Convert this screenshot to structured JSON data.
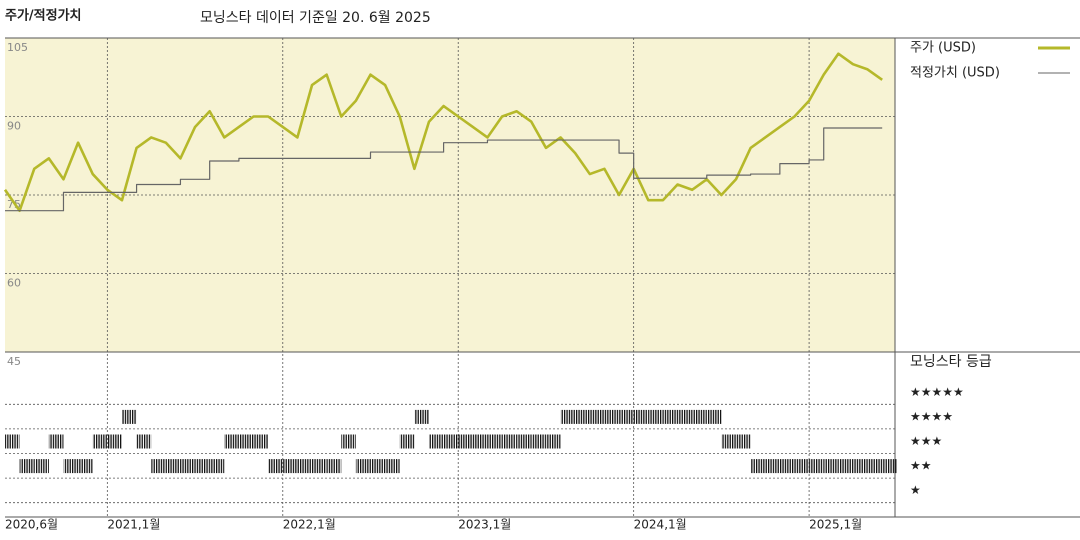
{
  "chart_data": [
    {
      "type": "line",
      "title": "주가/적정가치",
      "subtitle": "모닝스타 데이터 기준일 20. 6월 2025",
      "x": [
        "2020-06",
        "2020-07",
        "2020-08",
        "2020-09",
        "2020-10",
        "2020-11",
        "2020-12",
        "2021-01",
        "2021-02",
        "2021-03",
        "2021-04",
        "2021-05",
        "2021-06",
        "2021-07",
        "2021-08",
        "2021-09",
        "2021-10",
        "2021-11",
        "2021-12",
        "2022-01",
        "2022-02",
        "2022-03",
        "2022-04",
        "2022-05",
        "2022-06",
        "2022-07",
        "2022-08",
        "2022-09",
        "2022-10",
        "2022-11",
        "2022-12",
        "2023-01",
        "2023-02",
        "2023-03",
        "2023-04",
        "2023-05",
        "2023-06",
        "2023-07",
        "2023-08",
        "2023-09",
        "2023-10",
        "2023-11",
        "2023-12",
        "2024-01",
        "2024-02",
        "2024-03",
        "2024-04",
        "2024-05",
        "2024-06",
        "2024-07",
        "2024-08",
        "2024-09",
        "2024-10",
        "2024-11",
        "2024-12",
        "2025-01",
        "2025-02",
        "2025-03",
        "2025-04",
        "2025-05",
        "2025-06"
      ],
      "series": [
        {
          "name": "주가 (USD)",
          "color": "#b5b82a",
          "values": [
            76,
            72,
            80,
            82,
            78,
            85,
            79,
            76,
            74,
            84,
            86,
            85,
            82,
            88,
            91,
            86,
            88,
            90,
            90,
            88,
            86,
            96,
            98,
            90,
            93,
            98,
            96,
            90,
            80,
            89,
            92,
            90,
            88,
            86,
            90,
            91,
            89,
            84,
            86,
            83,
            79,
            80,
            75,
            80,
            74,
            74,
            77,
            76,
            78,
            75,
            78,
            84,
            86,
            88,
            90,
            93,
            98,
            102,
            100,
            99,
            97
          ]
        },
        {
          "name": "적정가치 (USD)",
          "color": "#666666",
          "values": [
            72,
            72,
            72,
            72,
            75.5,
            75.5,
            75.5,
            75.5,
            75.5,
            77,
            77,
            77,
            78,
            78,
            81.5,
            81.5,
            82,
            82,
            82,
            82,
            82,
            82,
            82,
            82,
            82,
            83.2,
            83.2,
            83.2,
            83.2,
            83.2,
            85,
            85,
            85,
            85.5,
            85.5,
            85.5,
            85.5,
            85.5,
            85.5,
            85.5,
            85.5,
            85.5,
            83,
            78.2,
            78.2,
            78.2,
            78.2,
            78.2,
            78.8,
            78.8,
            78.8,
            79,
            79,
            81,
            81,
            81.7,
            87.8,
            87.8,
            87.8,
            87.8,
            87.8
          ]
        }
      ],
      "ylim": [
        45,
        105
      ],
      "yticks": [
        105,
        90,
        75,
        60,
        45
      ],
      "xticks": [
        {
          "value": "2020-06",
          "label": "2020,6월"
        },
        {
          "value": "2021-01",
          "label": "2021,1월"
        },
        {
          "value": "2022-01",
          "label": "2022,1월"
        },
        {
          "value": "2023-01",
          "label": "2023,1월"
        },
        {
          "value": "2024-01",
          "label": "2024,1월"
        },
        {
          "value": "2025-01",
          "label": "2025,1월"
        }
      ],
      "grid": true
    },
    {
      "type": "rating",
      "title": "모닝스타 등급",
      "x": [
        "2020-06",
        "2020-07",
        "2020-08",
        "2020-09",
        "2020-10",
        "2020-11",
        "2020-12",
        "2021-01",
        "2021-02",
        "2021-03",
        "2021-04",
        "2021-05",
        "2021-06",
        "2021-07",
        "2021-08",
        "2021-09",
        "2021-10",
        "2021-11",
        "2021-12",
        "2022-01",
        "2022-02",
        "2022-03",
        "2022-04",
        "2022-05",
        "2022-06",
        "2022-07",
        "2022-08",
        "2022-09",
        "2022-10",
        "2022-11",
        "2022-12",
        "2023-01",
        "2023-02",
        "2023-03",
        "2023-04",
        "2023-05",
        "2023-06",
        "2023-07",
        "2023-08",
        "2023-09",
        "2023-10",
        "2023-11",
        "2023-12",
        "2024-01",
        "2024-02",
        "2024-03",
        "2024-04",
        "2024-05",
        "2024-06",
        "2024-07",
        "2024-08",
        "2024-09",
        "2024-10",
        "2024-11",
        "2024-12",
        "2025-01",
        "2025-02",
        "2025-03",
        "2025-04",
        "2025-05",
        "2025-06"
      ],
      "values": [
        3,
        2,
        2,
        3,
        2,
        2,
        3,
        3,
        4,
        3,
        2,
        2,
        2,
        2,
        2,
        3,
        3,
        3,
        2,
        2,
        2,
        2,
        2,
        3,
        2,
        2,
        2,
        3,
        4,
        3,
        3,
        3,
        3,
        3,
        3,
        3,
        3,
        3,
        4,
        4,
        4,
        4,
        4,
        4,
        4,
        4,
        4,
        4,
        4,
        3,
        3,
        2,
        2,
        2,
        2,
        2,
        2,
        2,
        2,
        2,
        2
      ],
      "color": "#111111",
      "ylim": [
        0.5,
        5.5
      ],
      "yticks": [
        {
          "value": 5,
          "label": "★★★★★"
        },
        {
          "value": 4,
          "label": "★★★★"
        },
        {
          "value": 3,
          "label": "★★★"
        },
        {
          "value": 2,
          "label": "★★"
        },
        {
          "value": 1,
          "label": "★"
        }
      ]
    }
  ]
}
